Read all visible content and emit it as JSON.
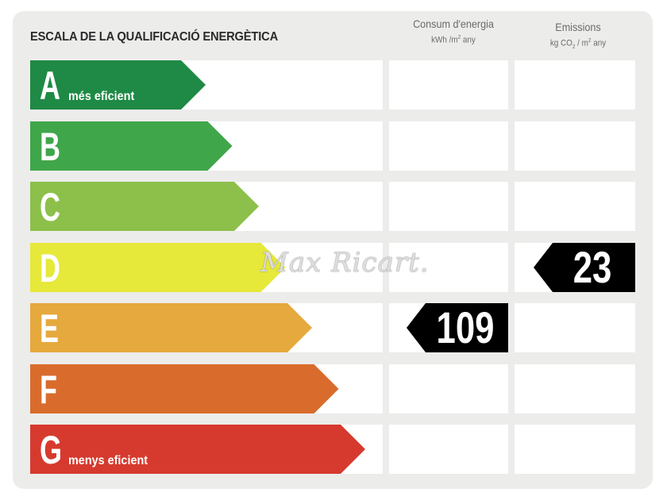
{
  "title": "ESCALA DE LA QUALIFICACIÓ ENERGÈTICA",
  "columns": {
    "consumption": {
      "label": "Consum d'energia",
      "unit_prefix": "kWh /m",
      "unit_sup": "2",
      "unit_suffix": " any"
    },
    "emissions": {
      "label": "Emissions",
      "unit_prefix": "kg CO",
      "unit_sub": "2",
      "unit_mid": " / m",
      "unit_sup": "2",
      "unit_suffix": " any"
    }
  },
  "ratings": [
    {
      "letter": "A",
      "sub": "més eficient",
      "color": "#1e8a45"
    },
    {
      "letter": "B",
      "sub": "",
      "color": "#3fa64a"
    },
    {
      "letter": "C",
      "sub": "",
      "color": "#8cc04a"
    },
    {
      "letter": "D",
      "sub": "",
      "color": "#e6e83a"
    },
    {
      "letter": "E",
      "sub": "",
      "color": "#e6a93d"
    },
    {
      "letter": "F",
      "sub": "",
      "color": "#d96c2c"
    },
    {
      "letter": "G",
      "sub": "menys eficient",
      "color": "#d63a2e"
    }
  ],
  "consumption_value": {
    "rating": "E",
    "value": "109"
  },
  "emissions_value": {
    "rating": "D",
    "value": "23"
  },
  "watermark": "Max Ricart."
}
